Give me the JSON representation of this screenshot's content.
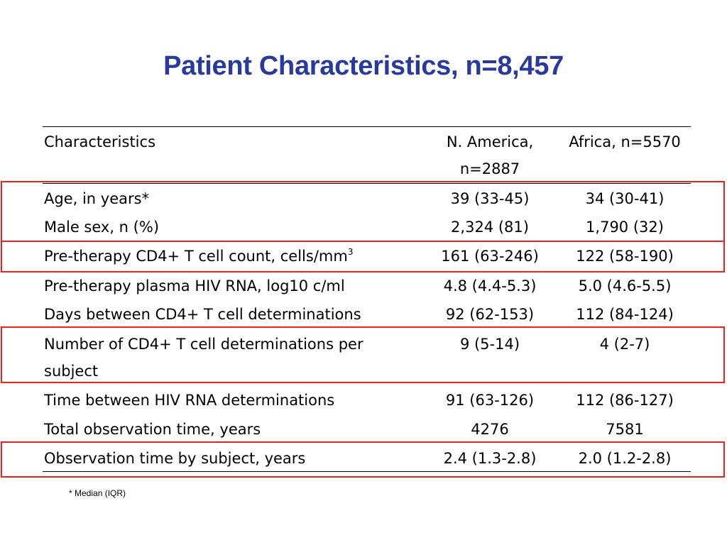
{
  "title": "Patient Characteristics, n=8,457",
  "table": {
    "headers": [
      "Characteristics",
      "N. America, n=2887",
      "Africa, n=5570"
    ],
    "rows": [
      {
        "label": "Age, in years*",
        "na": "39 (33-45)",
        "africa": "34 (30-41)",
        "highlighted": true
      },
      {
        "label": "Male sex, n (%)",
        "na": "2,324 (81)",
        "africa": "1,790 (32)",
        "highlighted": true
      },
      {
        "label": "Pre-therapy CD4+ T cell count, cells/mm",
        "label_superscript": "3",
        "na": "161 (63-246)",
        "africa": "122 (58-190)",
        "highlighted": true
      },
      {
        "label": "Pre-therapy plasma HIV RNA, log10 c/ml",
        "na": "4.8 (4.4-5.3)",
        "africa": "5.0 (4.6-5.5)",
        "highlighted": false
      },
      {
        "label": "Days between CD4+ T cell determinations",
        "na": "92 (62-153)",
        "africa": "112 (84-124)",
        "highlighted": false
      },
      {
        "label": "Number of CD4+ T cell determinations per subject",
        "na": "9 (5-14)",
        "africa": "4 (2-7)",
        "highlighted": true
      },
      {
        "label": "Time between HIV RNA determinations",
        "na": "91 (63-126)",
        "africa": "112 (86-127)",
        "highlighted": false
      },
      {
        "label": "Total observation time, years",
        "na": "4276",
        "africa": "7581",
        "highlighted": false
      },
      {
        "label": "Observation time by subject, years",
        "na": "2.4 (1.3-2.8)",
        "africa": "2.0 (1.2-2.8)",
        "highlighted": true
      }
    ]
  },
  "footnote": "* Median (IQR)",
  "colors": {
    "title": "#2a3a9c",
    "highlight_border": "#e8231f",
    "text": "#000000"
  }
}
